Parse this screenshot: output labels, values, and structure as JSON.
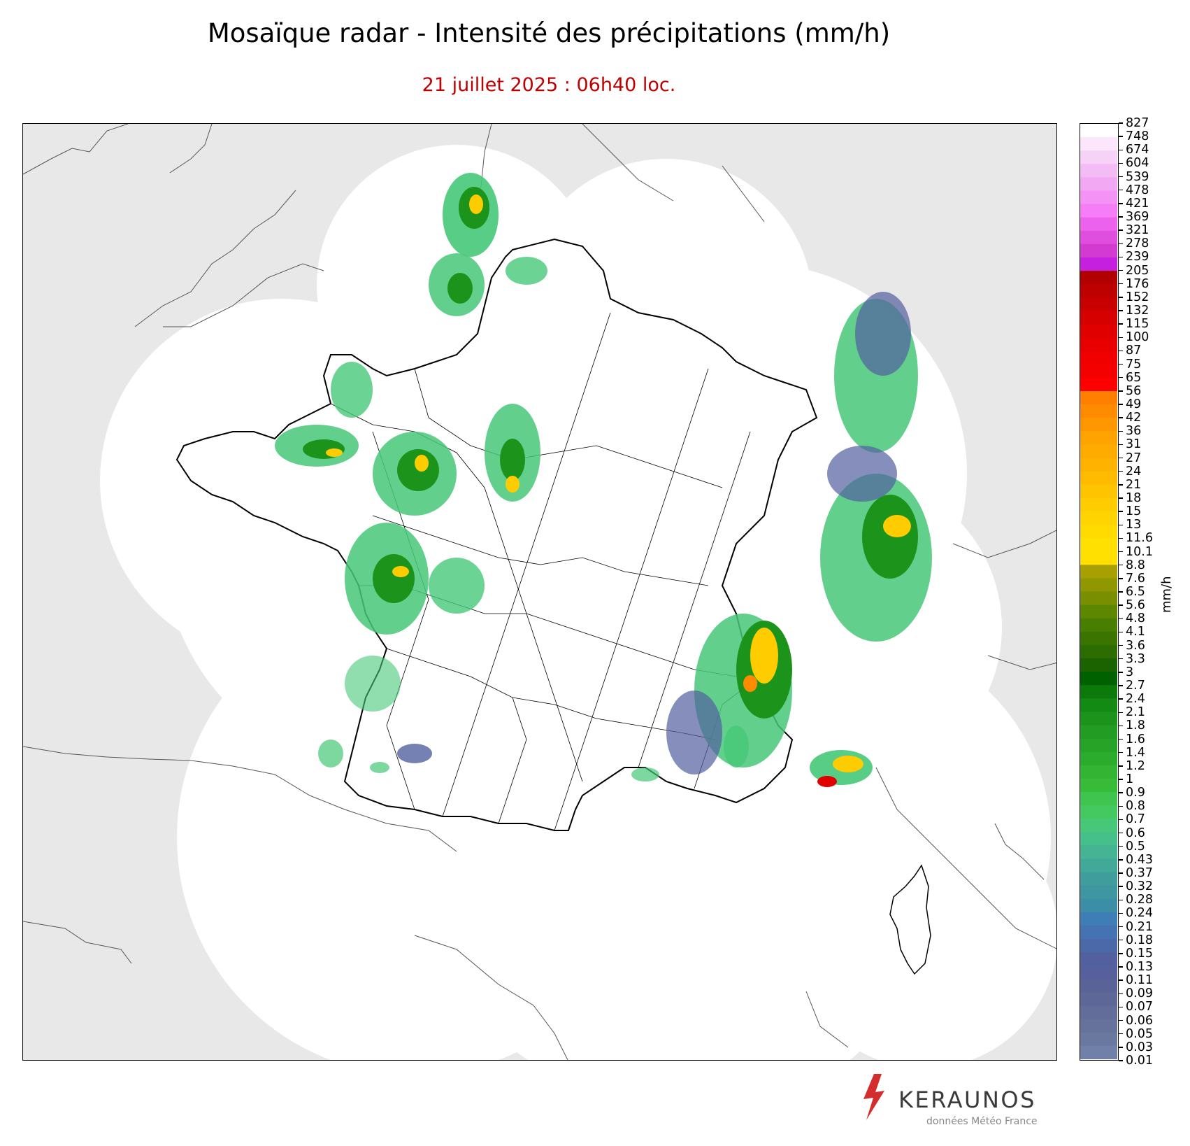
{
  "header": {
    "title": "Mosaïque radar - Intensité des précipitations (mm/h)",
    "subtitle": "21 juillet 2025 : 06h40 loc."
  },
  "legend": {
    "unit": "mm/h",
    "ticks": [
      "827",
      "748",
      "674",
      "604",
      "539",
      "478",
      "421",
      "369",
      "321",
      "278",
      "239",
      "205",
      "176",
      "152",
      "132",
      "115",
      "100",
      "87",
      "75",
      "65",
      "56",
      "49",
      "42",
      "36",
      "31",
      "27",
      "24",
      "21",
      "18",
      "15",
      "13",
      "11.6",
      "10.1",
      "8.8",
      "7.6",
      "6.5",
      "5.6",
      "4.8",
      "4.1",
      "3.6",
      "3.3",
      "3",
      "2.7",
      "2.4",
      "2.1",
      "1.8",
      "1.6",
      "1.4",
      "1.2",
      "1",
      "0.9",
      "0.8",
      "0.7",
      "0.6",
      "0.5",
      "0.43",
      "0.37",
      "0.32",
      "0.28",
      "0.24",
      "0.21",
      "0.18",
      "0.15",
      "0.13",
      "0.11",
      "0.09",
      "0.07",
      "0.06",
      "0.05",
      "0.03",
      "0.01"
    ],
    "colors": [
      "#ffffff",
      "#fbe6fb",
      "#f7d2f7",
      "#f4bcf4",
      "#f2a8f2",
      "#f592f5",
      "#f57df5",
      "#ec62ec",
      "#e04ee0",
      "#d23ad2",
      "#c51fdf",
      "#b00000",
      "#bd0000",
      "#c90000",
      "#d60000",
      "#e00000",
      "#e80000",
      "#f00000",
      "#f50000",
      "#ff0000",
      "#ff7f00",
      "#ff8c00",
      "#ff9800",
      "#ffa300",
      "#ffab00",
      "#ffb300",
      "#ffbb00",
      "#ffc400",
      "#ffcc00",
      "#ffd400",
      "#ffdb00",
      "#ffe000",
      "#ffe000",
      "#a8a000",
      "#8f9800",
      "#7a8f00",
      "#5e8700",
      "#4a7e00",
      "#3b7500",
      "#2d6c00",
      "#1a6300",
      "#006100",
      "#0b7a0b",
      "#138a13",
      "#1c941c",
      "#229c22",
      "#27a427",
      "#2cac2c",
      "#33b433",
      "#38bc38",
      "#3fc44f",
      "#44c860",
      "#46c878",
      "#46c08a",
      "#44b493",
      "#42a897",
      "#3f9e9c",
      "#3d96a0",
      "#3b8ea6",
      "#3e7db6",
      "#4572b2",
      "#4b68a8",
      "#5260a0",
      "#56609c",
      "#5a6398",
      "#5e6898",
      "#626d9a",
      "#66729c",
      "#6a78a0",
      "#7080a8"
    ]
  },
  "map": {
    "colors": {
      "background_out_of_range": "#e8e8e8",
      "radar_coverage": "#ffffff",
      "borders": "#000000",
      "light_rain": "#46c878",
      "moderate_rain": "#1c941c",
      "heavy_rain": "#ffcc00",
      "very_heavy": "#ff8c00",
      "extreme": "#e00000",
      "drizzle": "#5260a0"
    }
  },
  "branding": {
    "name": "KERAUNOS",
    "credit": "données Météo France"
  }
}
